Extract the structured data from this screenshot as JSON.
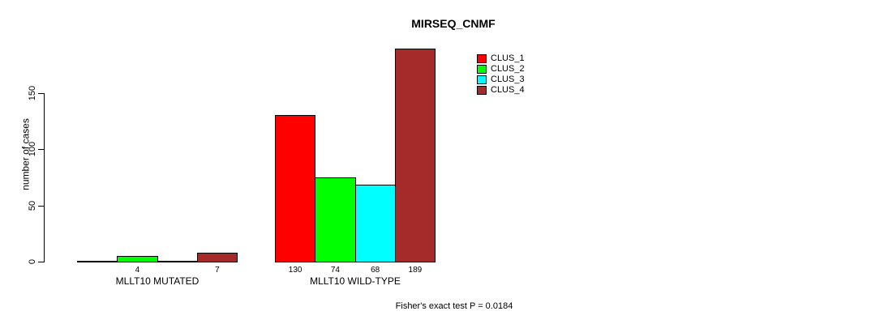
{
  "chart_data": {
    "type": "bar",
    "title": "MIRSEQ_CNMF",
    "ylabel": "number of cases",
    "xlabel": "",
    "ylim": [
      0,
      150
    ],
    "yticks": [
      0,
      50,
      100,
      150
    ],
    "grid": false,
    "background": "#FFFFFF",
    "text_color": "#000000",
    "categories": [
      "MLLT10 MUTATED",
      "MLLT10 WILD-TYPE"
    ],
    "series": [
      {
        "name": "CLUS_1",
        "color": "#FF0000",
        "values": [
          0,
          130
        ]
      },
      {
        "name": "CLUS_2",
        "color": "#00FF00",
        "values": [
          4,
          74
        ]
      },
      {
        "name": "CLUS_3",
        "color": "#00FFFF",
        "values": [
          0,
          68
        ]
      },
      {
        "name": "CLUS_4",
        "color": "#A52A2A",
        "values": [
          7,
          189
        ]
      }
    ],
    "bar_value_labels": [
      [
        "",
        "4",
        "",
        "7"
      ],
      [
        "130",
        "74",
        "68",
        "189"
      ]
    ],
    "legend_position": "inner-top",
    "annotation": "Fisher's exact test P = 0.0184"
  }
}
